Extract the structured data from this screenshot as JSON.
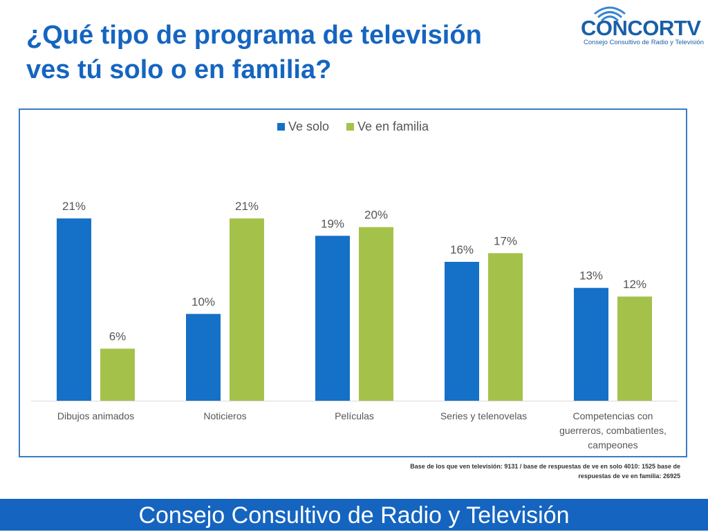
{
  "slide": {
    "title_line1": "¿Qué tipo de programa de televisión",
    "title_line2": "ves tú solo o en familia?",
    "footnote_line1": "Base de los que ven televisión: 9131 / base de respuestas de ve en solo 4010: 1525 base de",
    "footnote_line2": "respuestas de ve en familia:  26925",
    "footer": "Consejo Consultivo de Radio y Televisión"
  },
  "logo": {
    "name": "CONCORTV",
    "subtitle": "Consejo Consultivo de Radio y Televisión",
    "icon": "broadcast-waves-icon"
  },
  "colors": {
    "title": "#1565c0",
    "ve_solo": "#1570c8",
    "ve_familia": "#a4c24a",
    "footer_bg": "#1565c0",
    "frame": "#3a7cc2"
  },
  "chart_data": {
    "type": "bar",
    "title": "",
    "xlabel": "",
    "ylabel": "",
    "ylim": [
      0,
      25
    ],
    "grid": false,
    "legend_position": "top-center",
    "categories": [
      [
        "Dibujos animados"
      ],
      [
        "Noticieros"
      ],
      [
        "Películas"
      ],
      [
        "Series y telenovelas"
      ],
      [
        "Competencias con",
        "guerreros, combatientes,",
        "campeones"
      ]
    ],
    "series": [
      {
        "name": "Ve solo",
        "values": [
          21,
          10,
          19,
          16,
          13
        ],
        "labels": [
          "21%",
          "10%",
          "19%",
          "16%",
          "13%"
        ]
      },
      {
        "name": "Ve en familia",
        "values": [
          6,
          21,
          20,
          17,
          12
        ],
        "labels": [
          "6%",
          "21%",
          "20%",
          "17%",
          "12%"
        ]
      }
    ]
  }
}
